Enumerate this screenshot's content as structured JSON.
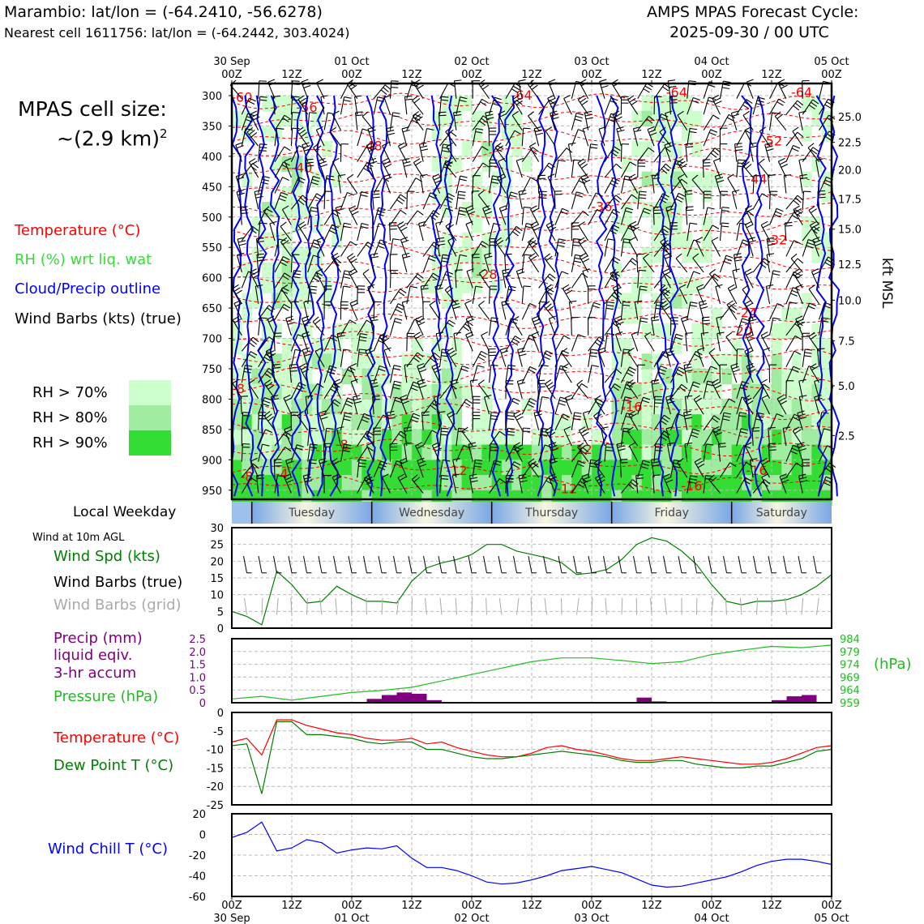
{
  "header": {
    "station": "Marambio: lat/lon = (-64.2410, -56.6278)",
    "nearest": "Nearest cell 1611756: lat/lon = (-64.2442, 303.4024)",
    "cycle_line1": "AMPS MPAS Forecast Cycle:",
    "cycle_line2": "2025-09-30 / 00 UTC"
  },
  "legend": {
    "cell_size_label": "MPAS cell size:",
    "cell_size_value": "~(2.9 km)",
    "cell_size_exp": "2",
    "temperature": "Temperature (°C)",
    "rh": "RH (%) wrt liq. wat",
    "cloud": "Cloud/Precip outline",
    "barbs": "Wind Barbs (kts) (true)",
    "rh70": "RH > 70%",
    "rh80": "RH > 80%",
    "rh90": "RH > 90%",
    "local_weekday": "Local Weekday",
    "wind10m": "Wind at 10m AGL",
    "wind_spd": "Wind Spd (kts)",
    "wind_barbs_true": "Wind Barbs (true)",
    "wind_barbs_grid": "Wind Barbs (grid)",
    "precip1": "Precip (mm)",
    "precip2": "liquid eqiv.",
    "precip3": "3-hr accum",
    "pressure": "Pressure (hPa)",
    "hpa_unit": "(hPa)",
    "temp2": "Temperature (°C)",
    "dewpoint": "Dew Point T (°C)",
    "windchill": "Wind Chill T (°C)",
    "kft": "kft MSL"
  },
  "colors": {
    "temp": "#ff0000",
    "rh": "#33dd33",
    "cloud": "#0000ff",
    "barbs": "#000000",
    "grid_barbs": "#aaaaaa",
    "precip": "#800080",
    "pressure": "#22bb22",
    "dew": "#008000",
    "chill": "#0000ff",
    "rh70": "#ccffcc",
    "rh80": "#a0eca0",
    "rh90": "#33dd33"
  },
  "chart_data": [
    {
      "type": "heatmap",
      "title": "Time-height cross section",
      "x_ticks_top": [
        {
          "h": 0,
          "l1": "30 Sep",
          "l2": "00Z"
        },
        {
          "h": 12,
          "l1": "",
          "l2": "12Z"
        },
        {
          "h": 24,
          "l1": "01 Oct",
          "l2": "00Z"
        },
        {
          "h": 36,
          "l1": "",
          "l2": "12Z"
        },
        {
          "h": 48,
          "l1": "02 Oct",
          "l2": "00Z"
        },
        {
          "h": 60,
          "l1": "",
          "l2": "12Z"
        },
        {
          "h": 72,
          "l1": "03 Oct",
          "l2": "00Z"
        },
        {
          "h": 84,
          "l1": "",
          "l2": "12Z"
        },
        {
          "h": 96,
          "l1": "04 Oct",
          "l2": "00Z"
        },
        {
          "h": 108,
          "l1": "",
          "l2": "12Z"
        },
        {
          "h": 120,
          "l1": "05 Oct",
          "l2": "00Z"
        }
      ],
      "pressure_ticks": [
        "300",
        "350",
        "400",
        "450",
        "500",
        "550",
        "600",
        "650",
        "700",
        "750",
        "800",
        "850",
        "900",
        "950"
      ],
      "kft_ticks": [
        {
          "p": 335,
          "l": "25.0"
        },
        {
          "p": 377,
          "l": "22.5"
        },
        {
          "p": 422,
          "l": "20.0"
        },
        {
          "p": 470,
          "l": "17.5"
        },
        {
          "p": 520,
          "l": "15.0"
        },
        {
          "p": 578,
          "l": "12.5"
        },
        {
          "p": 637,
          "l": "10.0"
        },
        {
          "p": 704,
          "l": "7.5"
        },
        {
          "p": 778,
          "l": "5.0"
        },
        {
          "p": 860,
          "l": "2.5"
        }
      ],
      "temp_labels": [
        {
          "h": 2,
          "p": 310,
          "l": "-60"
        },
        {
          "h": 15,
          "p": 327,
          "l": "-56"
        },
        {
          "h": 28,
          "p": 390,
          "l": "-48"
        },
        {
          "h": 14,
          "p": 426,
          "l": "-40"
        },
        {
          "h": 58,
          "p": 307,
          "l": "-64"
        },
        {
          "h": 89,
          "p": 302,
          "l": "-64"
        },
        {
          "h": 114,
          "p": 302,
          "l": "-64"
        },
        {
          "h": 108,
          "p": 382,
          "l": "-52"
        },
        {
          "h": 105,
          "p": 445,
          "l": "-44"
        },
        {
          "h": 74,
          "p": 490,
          "l": "-36"
        },
        {
          "h": 109,
          "p": 545,
          "l": "-32"
        },
        {
          "h": 51,
          "p": 602,
          "l": "-28"
        },
        {
          "h": 103,
          "p": 665,
          "l": "-24"
        },
        {
          "h": 102,
          "p": 695,
          "l": "-20"
        },
        {
          "h": 80,
          "p": 820,
          "l": "-16"
        },
        {
          "h": 105,
          "p": 925,
          "l": "-16"
        },
        {
          "h": 70,
          "p": 890,
          "l": "-12"
        },
        {
          "h": 45,
          "p": 925,
          "l": "-12"
        },
        {
          "h": 67,
          "p": 955,
          "l": "-12"
        },
        {
          "h": 92,
          "p": 950,
          "l": "-16"
        },
        {
          "h": 0,
          "p": 790,
          "l": "-8"
        },
        {
          "h": 22,
          "p": 882,
          "l": "-8"
        },
        {
          "h": 3,
          "p": 935,
          "l": "-8"
        },
        {
          "h": 10,
          "p": 930,
          "l": "-4"
        }
      ]
    },
    {
      "type": "line",
      "title": "Wind at 10m AGL",
      "ylabel": "Wind Spd (kts)",
      "ylim": [
        0,
        30
      ],
      "yticks": [
        "0",
        "5",
        "10",
        "15",
        "20",
        "25",
        "30"
      ],
      "x": [
        0,
        3,
        6,
        9,
        12,
        15,
        18,
        21,
        24,
        27,
        30,
        33,
        36,
        39,
        42,
        45,
        48,
        51,
        54,
        57,
        60,
        63,
        66,
        69,
        72,
        75,
        78,
        81,
        84,
        87,
        90,
        93,
        96,
        99,
        102,
        105,
        108,
        111,
        114,
        117,
        120
      ],
      "series": [
        {
          "name": "Wind Spd (kts)",
          "values": [
            5,
            3.5,
            1,
            17,
            13,
            7.5,
            8,
            12.5,
            10,
            8,
            8,
            7.5,
            14,
            18,
            19.5,
            20.5,
            22,
            25,
            25,
            23,
            22,
            21,
            19.5,
            16,
            16.5,
            17.5,
            20.5,
            25,
            27,
            26,
            23,
            19,
            13,
            8,
            7,
            8,
            8,
            8.5,
            10,
            12.5,
            16
          ]
        }
      ]
    },
    {
      "type": "bar",
      "title": "Precip and pressure",
      "ylabel": "Precip (mm)",
      "ylim": [
        0,
        2.5
      ],
      "yticks": [
        "0",
        "0.5",
        "1.0",
        "1.5",
        "2.0",
        "2.5"
      ],
      "categories": [
        30,
        33,
        36,
        39,
        42,
        84,
        87,
        111,
        114,
        117
      ],
      "values": [
        0.15,
        0.3,
        0.4,
        0.35,
        0.1,
        0.2,
        0.05,
        0.1,
        0.25,
        0.3
      ],
      "y2label": "Pressure (hPa)",
      "y2lim": [
        959,
        984
      ],
      "y2ticks": [
        "959",
        "964",
        "969",
        "974",
        "979",
        "984"
      ],
      "x": [
        0,
        6,
        12,
        18,
        24,
        30,
        36,
        42,
        48,
        54,
        60,
        66,
        72,
        78,
        84,
        90,
        96,
        102,
        108,
        114,
        120
      ],
      "series": [
        {
          "name": "Pressure (hPa)",
          "values": [
            960.5,
            961.5,
            960.0,
            961.5,
            963.0,
            963.8,
            965.0,
            967.5,
            970.0,
            972.5,
            975.0,
            976.5,
            976.5,
            975.5,
            974.3,
            975.0,
            977.8,
            979.5,
            981.0,
            980.5,
            981.5
          ]
        }
      ]
    },
    {
      "type": "line",
      "title": "Temperature / Dew Point",
      "ylim": [
        -25,
        0
      ],
      "yticks": [
        "0",
        "-5",
        "-10",
        "-15",
        "-20",
        "-25"
      ],
      "x": [
        0,
        3,
        6,
        9,
        12,
        15,
        18,
        21,
        24,
        27,
        30,
        33,
        36,
        39,
        42,
        45,
        48,
        51,
        54,
        57,
        60,
        63,
        66,
        69,
        72,
        75,
        78,
        81,
        84,
        87,
        90,
        93,
        96,
        99,
        102,
        105,
        108,
        111,
        114,
        117,
        120
      ],
      "series": [
        {
          "name": "Temperature (°C)",
          "values": [
            -8,
            -7,
            -11.5,
            -2,
            -2,
            -3.5,
            -4.5,
            -5.5,
            -6,
            -7,
            -7.5,
            -7.5,
            -7,
            -8.5,
            -8,
            -9.5,
            -10.5,
            -11.5,
            -12,
            -12,
            -11,
            -9.5,
            -9,
            -10,
            -10.5,
            -11.5,
            -12.5,
            -13,
            -13,
            -12.5,
            -12,
            -12.5,
            -13,
            -13.5,
            -14,
            -14,
            -13.5,
            -12.5,
            -11,
            -9.5,
            -9
          ]
        },
        {
          "name": "Dew Point T (°C)",
          "values": [
            -9,
            -8.5,
            -22,
            -2.5,
            -2.5,
            -6,
            -6,
            -6.5,
            -7,
            -8,
            -8.5,
            -8,
            -8,
            -10,
            -10,
            -11,
            -12,
            -12.5,
            -12.5,
            -12,
            -11.5,
            -11,
            -10.5,
            -11,
            -11.5,
            -12,
            -13,
            -13.5,
            -13.5,
            -13,
            -13,
            -14,
            -14.5,
            -15,
            -15,
            -14.5,
            -14.5,
            -13.5,
            -12.5,
            -10.5,
            -10
          ]
        }
      ]
    },
    {
      "type": "line",
      "title": "Wind Chill",
      "ylim": [
        -60,
        20
      ],
      "yticks": [
        "20",
        "0",
        "-20",
        "-40",
        "-60"
      ],
      "x_ticks_bottom": [
        {
          "h": 0,
          "l1": "00Z",
          "l2": "30 Sep"
        },
        {
          "h": 12,
          "l1": "12Z",
          "l2": ""
        },
        {
          "h": 24,
          "l1": "00Z",
          "l2": "01 Oct"
        },
        {
          "h": 36,
          "l1": "12Z",
          "l2": ""
        },
        {
          "h": 48,
          "l1": "00Z",
          "l2": "02 Oct"
        },
        {
          "h": 60,
          "l1": "12Z",
          "l2": ""
        },
        {
          "h": 72,
          "l1": "00Z",
          "l2": "03 Oct"
        },
        {
          "h": 84,
          "l1": "12Z",
          "l2": ""
        },
        {
          "h": 96,
          "l1": "00Z",
          "l2": "04 Oct"
        },
        {
          "h": 108,
          "l1": "12Z",
          "l2": ""
        },
        {
          "h": 120,
          "l1": "00Z",
          "l2": "05 Oct"
        }
      ],
      "x": [
        0,
        3,
        6,
        9,
        12,
        15,
        18,
        21,
        24,
        27,
        30,
        33,
        36,
        39,
        42,
        45,
        48,
        51,
        54,
        57,
        60,
        63,
        66,
        69,
        72,
        75,
        78,
        81,
        84,
        87,
        90,
        93,
        96,
        99,
        102,
        105,
        108,
        111,
        114,
        117,
        120
      ],
      "series": [
        {
          "name": "Wind Chill T (°C)",
          "values": [
            -3,
            2,
            12,
            -16,
            -13,
            -5,
            -8,
            -18,
            -15,
            -13,
            -14,
            -11,
            -23,
            -32,
            -32,
            -35,
            -40,
            -46,
            -48,
            -47,
            -44,
            -40,
            -35,
            -33,
            -31,
            -34,
            -37,
            -43,
            -49,
            -51,
            -50,
            -47,
            -44,
            -41,
            -36,
            -30,
            -26,
            -24,
            -24,
            -26,
            -29
          ]
        }
      ]
    },
    {
      "type": "table",
      "title": "Local Weekday",
      "days": [
        {
          "start": 4,
          "end": 28,
          "l": "Tuesday"
        },
        {
          "start": 28,
          "end": 52,
          "l": "Wednesday"
        },
        {
          "start": 52,
          "end": 76,
          "l": "Thursday"
        },
        {
          "start": 76,
          "end": 100,
          "l": "Friday"
        },
        {
          "start": 100,
          "end": 120,
          "l": "Saturday"
        }
      ]
    }
  ]
}
